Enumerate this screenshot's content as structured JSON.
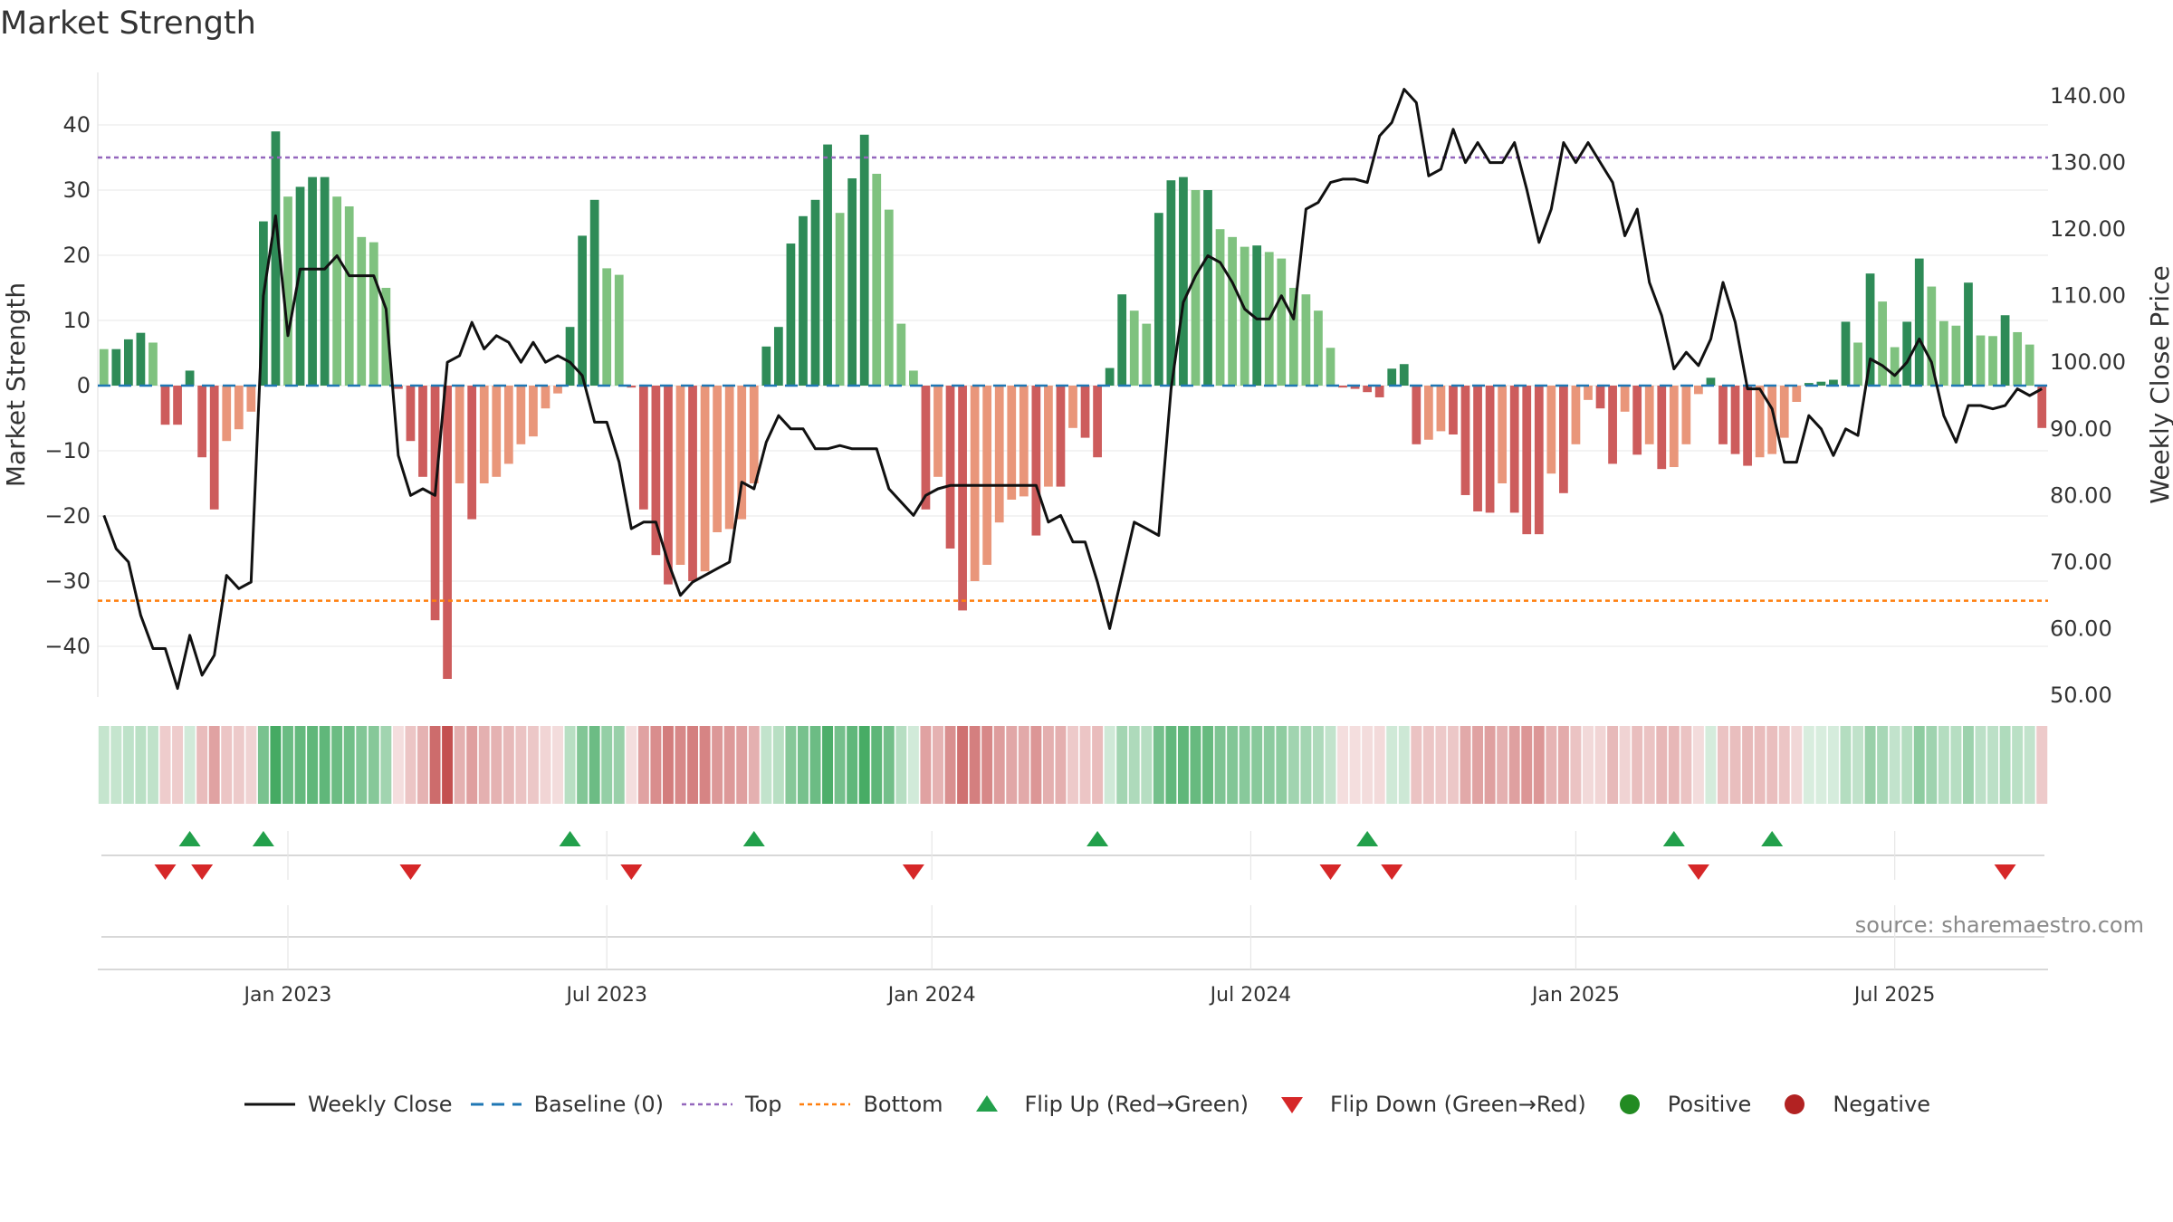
{
  "page": {
    "title": "Market Strength",
    "source": "source: sharemaestro.com"
  },
  "legend": {
    "weekly_close": "Weekly Close",
    "baseline": "Baseline (0)",
    "top": "Top",
    "bottom": "Bottom",
    "flip_up": "Flip Up (Red→Green)",
    "flip_down": "Flip Down (Green→Red)",
    "positive": "Positive",
    "negative": "Negative"
  },
  "colors": {
    "green_strong": "#2e8b57",
    "green_light": "#7fc27f",
    "red_strong": "#cd5c5c",
    "red_light": "#e9967a",
    "line": "#111111",
    "baseline": "#1f77b4",
    "top": "#9467bd",
    "bottom": "#ff7f0e",
    "up_marker": "#22a04b",
    "down_marker": "#d62728",
    "positive": "#228b22",
    "negative": "#b22222"
  },
  "chart_data": {
    "type": "bar",
    "ylabel": "Market Strength",
    "y2label": "Weekly Close Price",
    "ylim": [
      -48,
      48
    ],
    "y2lim": [
      45,
      145
    ],
    "yticks": [
      -40,
      -30,
      -20,
      -10,
      0,
      10,
      20,
      30,
      40
    ],
    "y2ticks": [
      "50.00",
      "60.00",
      "70.00",
      "80.00",
      "90.00",
      "100.00",
      "110.00",
      "120.00",
      "130.00",
      "140.00"
    ],
    "y2tick_values": [
      50,
      60,
      70,
      80,
      90,
      100,
      110,
      120,
      130,
      140
    ],
    "xticks": [
      "Jan 2023",
      "Jul 2023",
      "Jan 2024",
      "Jul 2024",
      "Jan 2025",
      "Jul 2025"
    ],
    "xtick_index": [
      15,
      41,
      67.5,
      93.5,
      120,
      146
    ],
    "top_line": 35,
    "bottom_line": -33,
    "baseline": 0,
    "strength": [
      5.6,
      5.6,
      7.1,
      8.1,
      6.6,
      -6,
      -6,
      2.3,
      -11,
      -19,
      -8.5,
      -6.7,
      -4,
      25.2,
      39,
      29,
      30.5,
      32,
      32,
      29,
      27.5,
      22.8,
      22,
      15,
      -0.5,
      -8.5,
      -14,
      -36,
      -45,
      -15,
      -20.5,
      -15,
      -14,
      -12,
      -9,
      -7.8,
      -3.5,
      -1.2,
      9,
      23,
      28.5,
      18,
      17,
      -0.3,
      -19,
      -26,
      -30.5,
      -27.5,
      -30,
      -28.5,
      -22.5,
      -22,
      -20.5,
      -15,
      6,
      9,
      21.8,
      26,
      28.5,
      37,
      26.5,
      31.8,
      38.5,
      32.5,
      27,
      9.5,
      2.3,
      -19,
      -14,
      -25,
      -34.5,
      -30,
      -27.5,
      -21,
      -17.5,
      -17,
      -23,
      -15.5,
      -15.5,
      -6.5,
      -8,
      -11,
      2.7,
      14,
      11.5,
      9.5,
      26.5,
      31.5,
      32,
      30,
      30,
      24,
      22.8,
      21.3,
      21.5,
      20.5,
      19.5,
      15,
      14,
      11.5,
      5.8,
      -0.3,
      -0.5,
      -1,
      -1.8,
      2.6,
      3.3,
      -9,
      -8.3,
      -7,
      -7.5,
      -16.8,
      -19.3,
      -19.5,
      -15,
      -19.5,
      -22.8,
      -22.8,
      -13.5,
      -16.5,
      -9,
      -2.2,
      -3.5,
      -12,
      -4,
      -10.6,
      -9,
      -12.8,
      -12.5,
      -9,
      -1.3,
      1.2,
      -9,
      -10.5,
      -12.3,
      -11,
      -10.5,
      -8,
      -2.5,
      0.4,
      0.6,
      0.9,
      9.8,
      6.6,
      17.2,
      12.9,
      5.9,
      9.8,
      19.5,
      15.2,
      9.9,
      9.2,
      15.8,
      7.7,
      7.6,
      10.8,
      8.2,
      6.3,
      -6.5
    ],
    "close": [
      77,
      72,
      70,
      62,
      57,
      57,
      51,
      59,
      53,
      56,
      68,
      66,
      67,
      110,
      122,
      104,
      114,
      114,
      114,
      116,
      113,
      113,
      113,
      108,
      86,
      80,
      81,
      80,
      100,
      101,
      106,
      102,
      104,
      103,
      100,
      103,
      100,
      101,
      100,
      98,
      91,
      91,
      85,
      75,
      76,
      76,
      70,
      65,
      67,
      68,
      69,
      70,
      82,
      81,
      88,
      92,
      90,
      90,
      87,
      87,
      87.5,
      87,
      87,
      87,
      81,
      79,
      77,
      80,
      81,
      81.5,
      81.5,
      81.5,
      81.5,
      81.5,
      81.5,
      81.5,
      81.5,
      76,
      77,
      73,
      73,
      67,
      60,
      68,
      76,
      75,
      74,
      96,
      109,
      113,
      116,
      115,
      112,
      108,
      106.5,
      106.5,
      110,
      106.5,
      123,
      124,
      127,
      127.5,
      127.5,
      127,
      134,
      136,
      141,
      139,
      128,
      129,
      135,
      130,
      133,
      130,
      130,
      133,
      126,
      118,
      123,
      133,
      130,
      133,
      130,
      127,
      119,
      123,
      112,
      107,
      99,
      101.5,
      99.5,
      103.5,
      112,
      106,
      96,
      96,
      93,
      85,
      85,
      92,
      90,
      86,
      90,
      89,
      100.5,
      99.5,
      98,
      100,
      103.5,
      100,
      92,
      88,
      93.5,
      93.5,
      93,
      93.5,
      96,
      95,
      96
    ],
    "up_flips": [
      7,
      13,
      38,
      53,
      81,
      103,
      128,
      136
    ],
    "down_flips": [
      5,
      8,
      25,
      43,
      66,
      100,
      105,
      130,
      155
    ]
  }
}
